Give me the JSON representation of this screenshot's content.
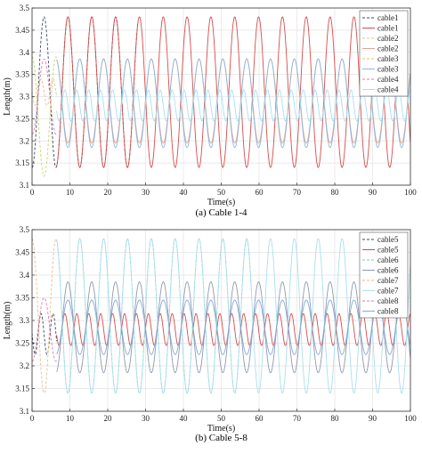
{
  "chart_data": [
    {
      "type": "line",
      "caption": "(a) Cable 1-4",
      "xlabel": "Time(s)",
      "ylabel": "Length(m)",
      "xlim": [
        0,
        100
      ],
      "ylim": [
        3.1,
        3.5
      ],
      "xticks": [
        0,
        10,
        20,
        30,
        40,
        50,
        60,
        70,
        80,
        90,
        100
      ],
      "yticks": [
        3.1,
        3.15,
        3.2,
        3.25,
        3.3,
        3.35,
        3.4,
        3.45,
        3.5
      ],
      "grid": true,
      "legend_position": "top-right",
      "series": [
        {
          "name": "cable1",
          "style": "dashed",
          "color": "#3c4a5e",
          "period": 6.3,
          "phase": 1.6,
          "center": 3.31,
          "amp": 0.17,
          "t_start": 0,
          "t_end": 28
        },
        {
          "name": "cable1",
          "style": "solid",
          "color": "#d64c4c",
          "period": 6.3,
          "phase": 1.6,
          "center": 3.31,
          "amp": 0.17,
          "t_start": 6.5,
          "t_end": 100
        },
        {
          "name": "cable2",
          "style": "dashed",
          "color": "#e6c08c",
          "period": 3.15,
          "phase": 1.6,
          "center": 3.31,
          "amp": 0.03,
          "t_start": 0,
          "t_end": 6.5
        },
        {
          "name": "cable2",
          "style": "solid",
          "color": "#e4a38f",
          "period": 6.3,
          "phase": 4.75,
          "center": 3.29,
          "amp": 0.095,
          "t_start": 6.5,
          "t_end": 100
        },
        {
          "name": "cable3",
          "style": "dashed",
          "color": "#c9d36a",
          "period": 6.3,
          "phase": 4.75,
          "center": 3.255,
          "amp": 0.135,
          "t_start": 0,
          "t_end": 6.5
        },
        {
          "name": "cable3",
          "style": "solid",
          "color": "#8cb8d8",
          "period": 6.3,
          "phase": 4.75,
          "center": 3.285,
          "amp": 0.1,
          "t_start": 6.5,
          "t_end": 100
        },
        {
          "name": "cable4",
          "style": "dashed",
          "color": "#e07ab0",
          "period": 6.3,
          "phase": 1.6,
          "center": 3.3,
          "amp": 0.085,
          "t_start": 0,
          "t_end": 6.5
        },
        {
          "name": "cable4",
          "style": "solid",
          "color": "#a9dff0",
          "period": 3.15,
          "phase": 1.6,
          "center": 3.28,
          "amp": 0.035,
          "t_start": 6.5,
          "t_end": 100
        }
      ]
    },
    {
      "type": "line",
      "caption": "(b) Cable 5-8",
      "xlabel": "Time(s)",
      "ylabel": "Length(m)",
      "xlim": [
        0,
        100
      ],
      "ylim": [
        3.1,
        3.5
      ],
      "xticks": [
        0,
        10,
        20,
        30,
        40,
        50,
        60,
        70,
        80,
        90,
        100
      ],
      "yticks": [
        3.1,
        3.15,
        3.2,
        3.25,
        3.3,
        3.35,
        3.4,
        3.45,
        3.5
      ],
      "grid": true,
      "legend_position": "top-right",
      "series": [
        {
          "name": "cable5",
          "style": "dashed",
          "color": "#3c4a5e",
          "period": 3.15,
          "phase": 1.6,
          "center": 3.27,
          "amp": 0.045,
          "t_start": 0,
          "t_end": 6.5
        },
        {
          "name": "cable5",
          "style": "solid",
          "color": "#d64c4c",
          "period": 3.15,
          "phase": 1.6,
          "center": 3.28,
          "amp": 0.035,
          "t_start": 6.5,
          "t_end": 100
        },
        {
          "name": "cable6",
          "style": "dashed",
          "color": "#7fc7b5",
          "period": 6.3,
          "phase": 4.75,
          "center": 3.31,
          "amp": 0.17,
          "t_start": 6.5,
          "t_end": 58
        },
        {
          "name": "cable6",
          "style": "solid",
          "color": "#8e9ab0",
          "period": 6.3,
          "phase": 1.6,
          "center": 3.285,
          "amp": 0.1,
          "t_start": 6.5,
          "t_end": 100
        },
        {
          "name": "cable7",
          "style": "dashed",
          "color": "#e6c08c",
          "period": 6.3,
          "phase": 4.75,
          "center": 3.31,
          "amp": 0.17,
          "t_start": 0,
          "t_end": 6.5
        },
        {
          "name": "cable7",
          "style": "solid",
          "color": "#a9dff0",
          "period": 6.3,
          "phase": 4.75,
          "center": 3.31,
          "amp": 0.17,
          "t_start": 6.5,
          "t_end": 100
        },
        {
          "name": "cable8",
          "style": "dashed",
          "color": "#e07ab0",
          "period": 6.3,
          "phase": 1.6,
          "center": 3.28,
          "amp": 0.07,
          "t_start": 0,
          "t_end": 6.5
        },
        {
          "name": "cable8",
          "style": "solid",
          "color": "#86a9d0",
          "period": 6.3,
          "phase": 1.6,
          "center": 3.285,
          "amp": 0.06,
          "t_start": 6.5,
          "t_end": 100
        }
      ]
    }
  ]
}
